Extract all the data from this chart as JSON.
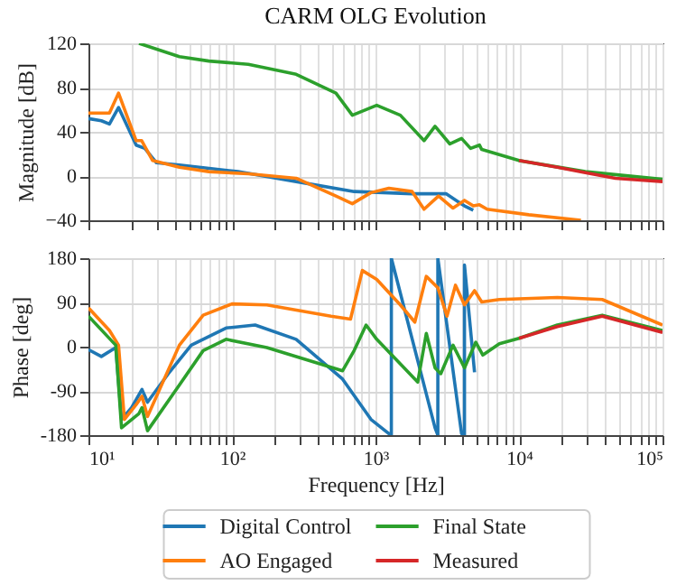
{
  "chart_data": [
    {
      "type": "line",
      "title": "CARM OLG Evolution",
      "ylabel": "Magnitude [dB]",
      "log": "x",
      "grid": true,
      "tick_labels": "y",
      "legend": "bottom",
      "xlim": [
        10,
        100000
      ],
      "xticks": [
        10,
        20,
        30,
        40,
        50,
        60,
        70,
        80,
        90,
        100,
        200,
        300,
        400,
        500,
        600,
        700,
        800,
        900,
        1000,
        2000,
        3000,
        4000,
        5000,
        6000,
        7000,
        8000,
        9000,
        10000,
        20000,
        30000,
        40000,
        50000,
        60000,
        70000,
        80000,
        90000,
        100000
      ],
      "ylim": [
        -40,
        120
      ],
      "yticks": [
        {
          "value": -40,
          "label": "−40"
        },
        0,
        40,
        80,
        120
      ],
      "series": [
        {
          "name": "Digital Control",
          "color": "#1f77b4",
          "x": [
            10,
            12.3,
            14,
            16.2,
            21.5,
            24.7,
            29.8,
            43,
            110,
            280,
            710,
            1800,
            3100,
            4170,
            4800
          ],
          "values": [
            52,
            50,
            47,
            62,
            28,
            25,
            12,
            10,
            4,
            -5,
            -14,
            -16,
            -16,
            -27,
            -31
          ]
        },
        {
          "name": "AO Engaged",
          "color": "#ff7f0e",
          "x": [
            10,
            14,
            16.2,
            21.5,
            23.5,
            28,
            43,
            69,
            130,
            280,
            530,
            690,
            930,
            1240,
            1800,
            2180,
            2750,
            3470,
            4170,
            4800,
            5300,
            6000,
            11700,
            27000
          ],
          "values": [
            57,
            57,
            75,
            32,
            32,
            14,
            8,
            4,
            2,
            -2,
            -18,
            -25,
            -15,
            -11,
            -14,
            -30,
            -18,
            -29,
            -22,
            -27,
            -26,
            -30,
            -35,
            -40
          ]
        },
        {
          "name": "Final State",
          "color": "#2ca02c",
          "x": [
            22.5,
            43,
            69,
            130,
            280,
            530,
            690,
            1020,
            1490,
            2180,
            2600,
            3300,
            3980,
            4600,
            5300,
            5500,
            10000,
            29000,
            100000
          ],
          "values": [
            120,
            108,
            104,
            101,
            92,
            75,
            55,
            64,
            55,
            32,
            45,
            29,
            34,
            25,
            28,
            24,
            14,
            4,
            -3
          ]
        },
        {
          "name": "Measured",
          "color": "#d62728",
          "x": [
            10000,
            18500,
            29000,
            47000,
            100000
          ],
          "values": [
            14,
            8,
            3,
            -2,
            -5
          ]
        }
      ]
    },
    {
      "type": "line",
      "xlabel": "Frequency [Hz]",
      "ylabel": "Phase [deg]",
      "log": "x",
      "grid": true,
      "xlim": [
        10,
        100000
      ],
      "xticks": [
        {
          "value": 10,
          "label": "10¹"
        },
        {
          "value": 20,
          "label": null
        },
        {
          "value": 30,
          "label": null
        },
        {
          "value": 40,
          "label": null
        },
        {
          "value": 50,
          "label": null
        },
        {
          "value": 60,
          "label": null
        },
        {
          "value": 70,
          "label": null
        },
        {
          "value": 80,
          "label": null
        },
        {
          "value": 90,
          "label": null
        },
        {
          "value": 100,
          "label": "10²"
        },
        {
          "value": 200,
          "label": null
        },
        {
          "value": 300,
          "label": null
        },
        {
          "value": 400,
          "label": null
        },
        {
          "value": 500,
          "label": null
        },
        {
          "value": 600,
          "label": null
        },
        {
          "value": 700,
          "label": null
        },
        {
          "value": 800,
          "label": null
        },
        {
          "value": 900,
          "label": null
        },
        {
          "value": 1000,
          "label": "10³"
        },
        {
          "value": 2000,
          "label": null
        },
        {
          "value": 3000,
          "label": null
        },
        {
          "value": 4000,
          "label": null
        },
        {
          "value": 5000,
          "label": null
        },
        {
          "value": 6000,
          "label": null
        },
        {
          "value": 7000,
          "label": null
        },
        {
          "value": 8000,
          "label": null
        },
        {
          "value": 9000,
          "label": null
        },
        {
          "value": 10000,
          "label": "10⁴"
        },
        {
          "value": 20000,
          "label": null
        },
        {
          "value": 30000,
          "label": null
        },
        {
          "value": 40000,
          "label": null
        },
        {
          "value": 50000,
          "label": null
        },
        {
          "value": 60000,
          "label": null
        },
        {
          "value": 70000,
          "label": null
        },
        {
          "value": 80000,
          "label": null
        },
        {
          "value": 90000,
          "label": null
        },
        {
          "value": 100000,
          "label": "10⁵"
        }
      ],
      "ylim": [
        -180,
        180
      ],
      "yticks": [
        -180,
        -90,
        0,
        90,
        180
      ],
      "series": [
        {
          "color": "#1f77b4",
          "x": [
            10,
            12.3,
            15.5,
            17,
            20,
            23.6,
            25.8,
            36,
            52,
            91,
            145,
            280,
            590,
            930,
            1240,
            1290,
            1290,
            2600,
            2720,
            2720,
            3980,
            4170,
            4170,
            4900
          ],
          "values": [
            -6,
            -20,
            -2,
            -148,
            -124,
            -87,
            -113,
            -55,
            3,
            38,
            44,
            15,
            -66,
            -148,
            -177,
            -180,
            180,
            -165,
            -180,
            180,
            -177,
            -180,
            166,
            -52
          ]
        },
        {
          "color": "#ff7f0e",
          "x": [
            10,
            14,
            16.2,
            17.8,
            21.5,
            23.6,
            25.8,
            43,
            63,
            100,
            175,
            490,
            670,
            810,
            1020,
            1490,
            1880,
            2260,
            2720,
            3150,
            3610,
            4170,
            4900,
            5500,
            7300,
            18500,
            38000,
            100000
          ],
          "values": [
            79,
            33,
            3,
            -148,
            -118,
            -101,
            -142,
            3,
            64,
            87,
            85,
            62,
            56,
            155,
            137,
            85,
            50,
            143,
            120,
            62,
            125,
            85,
            114,
            91,
            96,
            100,
            96,
            44
          ]
        },
        {
          "color": "#2ca02c",
          "x": [
            10,
            15.5,
            17,
            22.5,
            23.6,
            25.8,
            43,
            63,
            91,
            175,
            590,
            710,
            860,
            1020,
            1970,
            2260,
            2600,
            2850,
            3470,
            4170,
            5000,
            5600,
            7300,
            10000,
            18500,
            38000,
            100000
          ],
          "values": [
            62,
            3,
            -165,
            -136,
            -124,
            -171,
            -78,
            -8,
            15,
            -2,
            -49,
            -8,
            44,
            15,
            -72,
            27,
            -43,
            -55,
            3,
            -43,
            9,
            -17,
            6,
            17,
            44,
            64,
            33
          ]
        },
        {
          "color": "#d62728",
          "x": [
            10000,
            18500,
            38000,
            100000
          ],
          "values": [
            17,
            41,
            62,
            29
          ]
        }
      ]
    }
  ]
}
